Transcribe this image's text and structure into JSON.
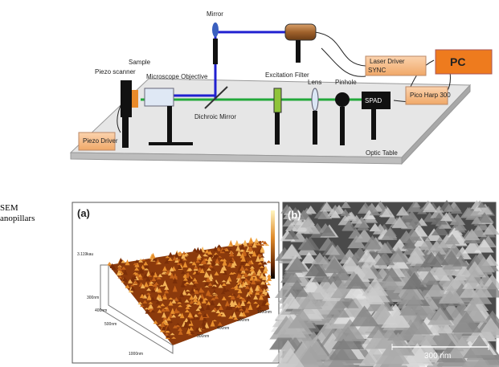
{
  "diagram": {
    "labels": {
      "mirror": "Mirror",
      "sample": "Sample",
      "piezo_scanner": "Piezo scanner",
      "objective": "Microscope Objective",
      "excitation_filter": "Excitation Filter",
      "lens": "Lens",
      "pinhole": "Pinhole",
      "laser_driver": "Laser Driver",
      "sync": "SYNC",
      "pc": "PC",
      "pico_harp": "Pico Harp 300",
      "spad": "SPAD",
      "dichroic": "Dichroic Mirror",
      "piezo_driver": "Piezo Driver",
      "optic_table": "Optic Table"
    }
  },
  "side_caption": [
    "SEM",
    "anopillars"
  ],
  "panels": [
    {
      "label": "(a)",
      "axis_labels": [
        "3.119kau",
        "300nm",
        "400nm",
        "500nm",
        "1000nm",
        "300nm",
        "400nm",
        "500nm",
        "1000nm"
      ]
    },
    {
      "label": "(b)",
      "scale_bar": "300 nm"
    }
  ]
}
